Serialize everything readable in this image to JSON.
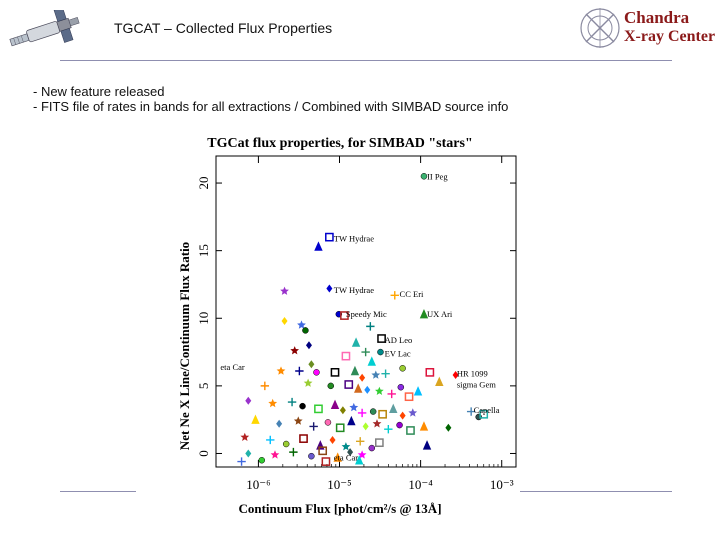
{
  "header": {
    "title": "TGCAT – Collected Flux Properties",
    "logo_line1": "Chandra",
    "logo_line2": "X-ray Center"
  },
  "bullets": [
    "- New feature released",
    "- FITS file of rates in bands for all extractions / Combined with SIMBAD source info"
  ],
  "colors": {
    "rule": "#8f8fb0",
    "logo_text": "#8b1a1a",
    "plot_frame": "#000000"
  },
  "icons": [
    "satellite-icon",
    "chandra-logo-icon"
  ],
  "chart_data": {
    "type": "scatter",
    "title": "TGCat flux properties, for SIMBAD \"stars\"",
    "xlabel": "Continuum Flux [phot/cm²/s @ 13Å]",
    "ylabel": "Net Ne X Line/Continuum Flux Ratio",
    "x_scale": "log",
    "xlim": [
      3e-07,
      0.0015
    ],
    "ylim": [
      -1,
      22
    ],
    "x_ticks": [
      {
        "value": 1e-06,
        "label": "10⁻⁶"
      },
      {
        "value": 1e-05,
        "label": "10⁻⁵"
      },
      {
        "value": 0.0001,
        "label": "10⁻⁴"
      },
      {
        "value": 0.001,
        "label": "10⁻³"
      }
    ],
    "y_ticks": [
      {
        "value": 0,
        "label": "0"
      },
      {
        "value": 5,
        "label": "5"
      },
      {
        "value": 10,
        "label": "10"
      },
      {
        "value": 15,
        "label": "15"
      },
      {
        "value": 20,
        "label": "20"
      }
    ],
    "grid": false,
    "annotations": [
      {
        "text": "II Peg",
        "x": 0.00012,
        "y": 20.5
      },
      {
        "text": "TW Hydrae",
        "x": 8.5e-06,
        "y": 15.9
      },
      {
        "text": "TW Hydrae",
        "x": 8.5e-06,
        "y": 12.1
      },
      {
        "text": "CC Eri",
        "x": 5.5e-05,
        "y": 11.8
      },
      {
        "text": "Speedy Mic",
        "x": 1.2e-05,
        "y": 10.3
      },
      {
        "text": "UX Ari",
        "x": 0.00012,
        "y": 10.3
      },
      {
        "text": "AD Leo",
        "x": 3.6e-05,
        "y": 8.4
      },
      {
        "text": "EV Lac",
        "x": 3.6e-05,
        "y": 7.4
      },
      {
        "text": "eta Car",
        "x": 3.4e-07,
        "y": 6.4
      },
      {
        "text": "HR 1099",
        "x": 0.00028,
        "y": 5.9
      },
      {
        "text": "sigma Gem",
        "x": 0.00028,
        "y": 5.1
      },
      {
        "text": "Capella",
        "x": 0.00045,
        "y": 3.2
      },
      {
        "text": "eta Car",
        "x": 8.5e-06,
        "y": -0.3
      }
    ],
    "series": [
      {
        "points": [
          {
            "x": 0.00011,
            "y": 20.5,
            "color": "#3cb371"
          },
          {
            "x": 7.5e-06,
            "y": 16.0,
            "color": "#0000cd"
          },
          {
            "x": 5.5e-06,
            "y": 15.3,
            "color": "#0000cd"
          },
          {
            "x": 7.5e-06,
            "y": 12.2,
            "color": "#0000cd"
          },
          {
            "x": 2.1e-06,
            "y": 12.0,
            "color": "#9932cc"
          },
          {
            "x": 4.8e-05,
            "y": 11.7,
            "color": "#ffa500"
          },
          {
            "x": 9.8e-06,
            "y": 10.3,
            "color": "#0000cd"
          },
          {
            "x": 1.15e-05,
            "y": 10.2,
            "color": "#b22222"
          },
          {
            "x": 0.00011,
            "y": 10.3,
            "color": "#228b22"
          },
          {
            "x": 2.1e-06,
            "y": 9.8,
            "color": "#ffd700"
          },
          {
            "x": 3.4e-06,
            "y": 9.5,
            "color": "#4169e1"
          },
          {
            "x": 2.4e-05,
            "y": 9.4,
            "color": "#008080"
          },
          {
            "x": 3.8e-06,
            "y": 9.1,
            "color": "#006400"
          },
          {
            "x": 3.3e-05,
            "y": 8.5,
            "color": "#000000"
          },
          {
            "x": 1.6e-05,
            "y": 8.2,
            "color": "#20b2aa"
          },
          {
            "x": 4.2e-06,
            "y": 8.0,
            "color": "#000080"
          },
          {
            "x": 2.8e-06,
            "y": 7.6,
            "color": "#8b0000"
          },
          {
            "x": 2.1e-05,
            "y": 7.5,
            "color": "#2e8b57"
          },
          {
            "x": 3.2e-05,
            "y": 7.5,
            "color": "#008b8b"
          },
          {
            "x": 1.2e-05,
            "y": 7.2,
            "color": "#ff69b4"
          },
          {
            "x": 2.5e-05,
            "y": 6.8,
            "color": "#00ced1"
          },
          {
            "x": 4.5e-06,
            "y": 6.6,
            "color": "#6b8e23"
          },
          {
            "x": 1.9e-06,
            "y": 6.1,
            "color": "#ff8c00"
          },
          {
            "x": 3.2e-06,
            "y": 6.1,
            "color": "#00008b"
          },
          {
            "x": 5.2e-06,
            "y": 6.0,
            "color": "#ff00ff"
          },
          {
            "x": 8.8e-06,
            "y": 6.0,
            "color": "#000000"
          },
          {
            "x": 1.55e-05,
            "y": 6.1,
            "color": "#2e8b57"
          },
          {
            "x": 1.9e-05,
            "y": 5.6,
            "color": "#ff4500"
          },
          {
            "x": 2.8e-05,
            "y": 5.8,
            "color": "#4682b4"
          },
          {
            "x": 3.7e-05,
            "y": 5.9,
            "color": "#20b2aa"
          },
          {
            "x": 6e-05,
            "y": 6.3,
            "color": "#9acd32"
          },
          {
            "x": 0.00013,
            "y": 6.0,
            "color": "#dc143c"
          },
          {
            "x": 0.00017,
            "y": 5.3,
            "color": "#daa520"
          },
          {
            "x": 0.00027,
            "y": 5.8,
            "color": "#ff0000"
          },
          {
            "x": 4.1e-06,
            "y": 5.2,
            "color": "#9acd32"
          },
          {
            "x": 1.2e-06,
            "y": 5.0,
            "color": "#ff8c00"
          },
          {
            "x": 7.8e-06,
            "y": 5.0,
            "color": "#228b22"
          },
          {
            "x": 1.3e-05,
            "y": 5.1,
            "color": "#4b0082"
          },
          {
            "x": 1.7e-05,
            "y": 4.8,
            "color": "#d2691e"
          },
          {
            "x": 2.2e-05,
            "y": 4.7,
            "color": "#1e90ff"
          },
          {
            "x": 3.1e-05,
            "y": 4.6,
            "color": "#32cd32"
          },
          {
            "x": 4.4e-05,
            "y": 4.4,
            "color": "#ff1493"
          },
          {
            "x": 5.7e-05,
            "y": 4.9,
            "color": "#8a2be2"
          },
          {
            "x": 7.2e-05,
            "y": 4.2,
            "color": "#ff6347"
          },
          {
            "x": 9.3e-05,
            "y": 4.6,
            "color": "#00bfff"
          },
          {
            "x": 7.5e-07,
            "y": 3.9,
            "color": "#9932cc"
          },
          {
            "x": 1.5e-06,
            "y": 3.7,
            "color": "#ff8c00"
          },
          {
            "x": 2.6e-06,
            "y": 3.8,
            "color": "#008080"
          },
          {
            "x": 3.5e-06,
            "y": 3.5,
            "color": "#000000"
          },
          {
            "x": 5.5e-06,
            "y": 3.3,
            "color": "#32cd32"
          },
          {
            "x": 8.8e-06,
            "y": 3.6,
            "color": "#8b008b"
          },
          {
            "x": 1.1e-05,
            "y": 3.2,
            "color": "#808000"
          },
          {
            "x": 1.5e-05,
            "y": 3.4,
            "color": "#4169e1"
          },
          {
            "x": 1.9e-05,
            "y": 3.0,
            "color": "#ff00ff"
          },
          {
            "x": 2.6e-05,
            "y": 3.1,
            "color": "#2e8b57"
          },
          {
            "x": 3.4e-05,
            "y": 2.9,
            "color": "#b8860b"
          },
          {
            "x": 4.6e-05,
            "y": 3.3,
            "color": "#5f9ea0"
          },
          {
            "x": 6e-05,
            "y": 2.8,
            "color": "#ff4500"
          },
          {
            "x": 8e-05,
            "y": 3.0,
            "color": "#6a5acd"
          },
          {
            "x": 0.00042,
            "y": 3.1,
            "color": "#4682b4"
          },
          {
            "x": 0.00052,
            "y": 2.7,
            "color": "#2f4f4f"
          },
          {
            "x": 0.0006,
            "y": 2.9,
            "color": "#20b2aa"
          },
          {
            "x": 9.2e-07,
            "y": 2.5,
            "color": "#ffd700"
          },
          {
            "x": 1.8e-06,
            "y": 2.2,
            "color": "#4682b4"
          },
          {
            "x": 3.1e-06,
            "y": 2.4,
            "color": "#8b4513"
          },
          {
            "x": 4.8e-06,
            "y": 2.0,
            "color": "#191970"
          },
          {
            "x": 7.2e-06,
            "y": 2.3,
            "color": "#ff69b4"
          },
          {
            "x": 1.02e-05,
            "y": 1.9,
            "color": "#228b22"
          },
          {
            "x": 1.4e-05,
            "y": 2.4,
            "color": "#00008b"
          },
          {
            "x": 2.1e-05,
            "y": 2.0,
            "color": "#adff2f"
          },
          {
            "x": 2.9e-05,
            "y": 2.2,
            "color": "#a52a2a"
          },
          {
            "x": 4e-05,
            "y": 1.8,
            "color": "#00ced1"
          },
          {
            "x": 5.5e-05,
            "y": 2.1,
            "color": "#9400d3"
          },
          {
            "x": 7.5e-05,
            "y": 1.7,
            "color": "#2e8b57"
          },
          {
            "x": 0.00011,
            "y": 2.0,
            "color": "#ff8c00"
          },
          {
            "x": 0.00022,
            "y": 1.9,
            "color": "#006400"
          },
          {
            "x": 6.8e-07,
            "y": 1.2,
            "color": "#b22222"
          },
          {
            "x": 1.4e-06,
            "y": 1.0,
            "color": "#00bfff"
          },
          {
            "x": 2.2e-06,
            "y": 0.7,
            "color": "#9acd32"
          },
          {
            "x": 3.6e-06,
            "y": 1.1,
            "color": "#8b0000"
          },
          {
            "x": 5.8e-06,
            "y": 0.6,
            "color": "#4b0082"
          },
          {
            "x": 8.2e-06,
            "y": 1.0,
            "color": "#ff4500"
          },
          {
            "x": 1.2e-05,
            "y": 0.5,
            "color": "#008b8b"
          },
          {
            "x": 1.8e-05,
            "y": 0.9,
            "color": "#daa520"
          },
          {
            "x": 2.5e-05,
            "y": 0.4,
            "color": "#9932cc"
          },
          {
            "x": 3.1e-05,
            "y": 0.8,
            "color": "#808080"
          },
          {
            "x": 0.00012,
            "y": 0.6,
            "color": "#000080"
          },
          {
            "x": 7.5e-07,
            "y": 0.0,
            "color": "#20b2aa"
          },
          {
            "x": 1.6e-06,
            "y": -0.1,
            "color": "#ff1493"
          },
          {
            "x": 2.7e-06,
            "y": 0.1,
            "color": "#006400"
          },
          {
            "x": 4.5e-06,
            "y": -0.2,
            "color": "#6a5acd"
          },
          {
            "x": 6.2e-06,
            "y": 0.2,
            "color": "#8b4513"
          },
          {
            "x": 9.5e-06,
            "y": -0.3,
            "color": "#ff8c00"
          },
          {
            "x": 1.35e-05,
            "y": 0.1,
            "color": "#2f4f4f"
          },
          {
            "x": 1.9e-05,
            "y": -0.1,
            "color": "#ff00ff"
          },
          {
            "x": 6.2e-07,
            "y": -0.6,
            "color": "#4169e1"
          },
          {
            "x": 1.1e-06,
            "y": -0.5,
            "color": "#32cd32"
          },
          {
            "x": 6.8e-06,
            "y": -0.6,
            "color": "#b22222"
          },
          {
            "x": 1.75e-05,
            "y": -0.5,
            "color": "#00ced1"
          }
        ]
      }
    ]
  }
}
